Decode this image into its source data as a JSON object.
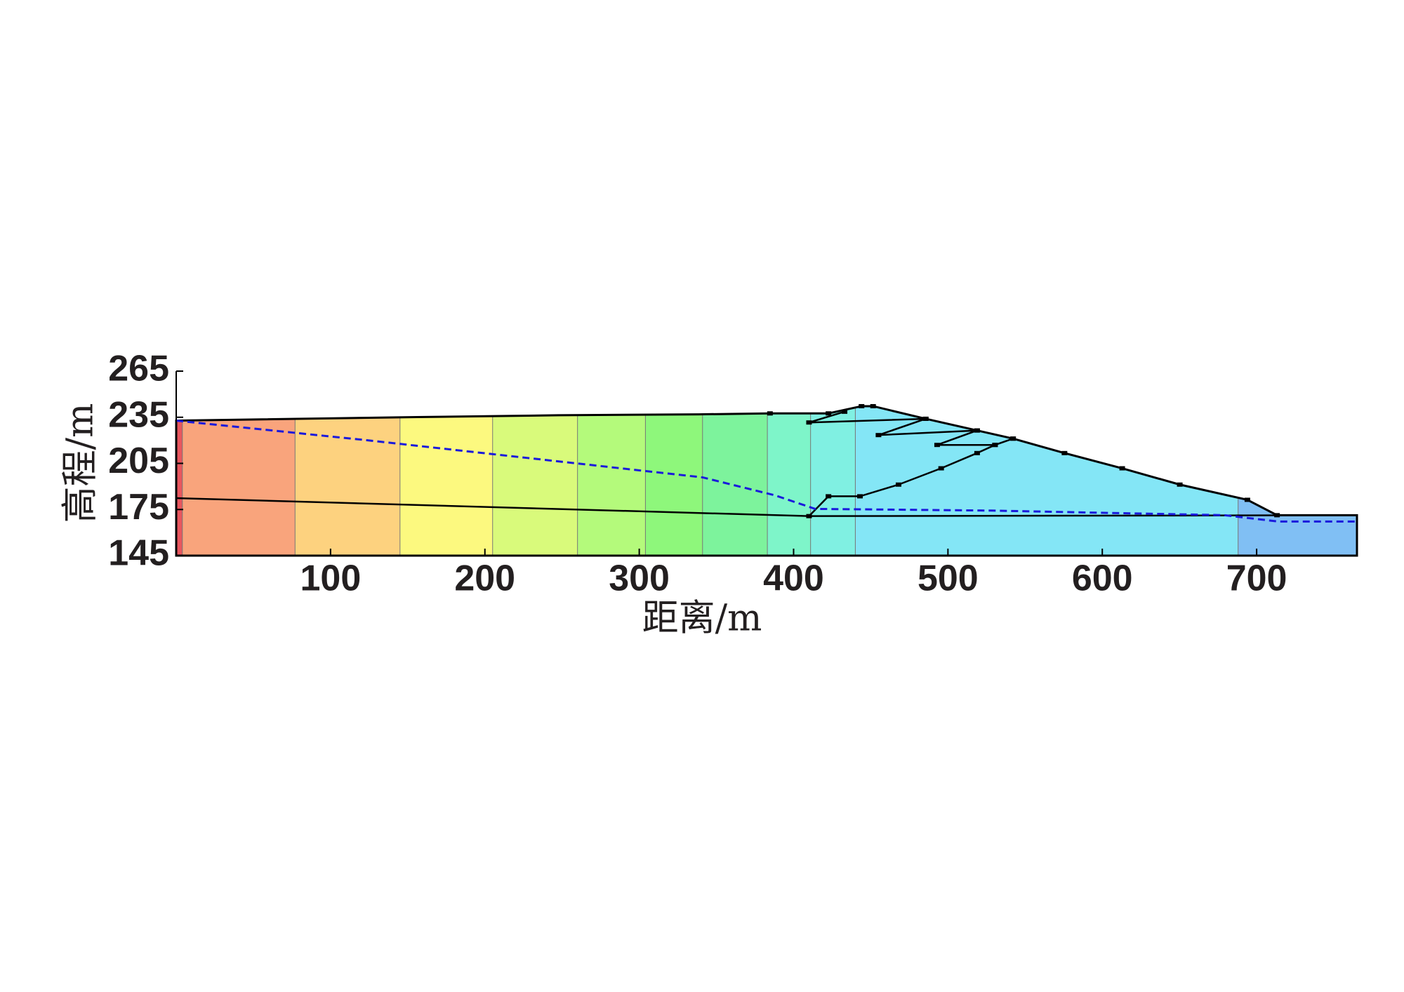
{
  "chart_data": {
    "type": "section",
    "xlabel": "距离/m",
    "ylabel": "高程/m",
    "xlim": [
      0,
      765
    ],
    "ylim": [
      145,
      265
    ],
    "xticks": [
      100,
      200,
      300,
      400,
      500,
      600,
      700
    ],
    "yticks": [
      145,
      175,
      205,
      235,
      265
    ],
    "domain": {
      "x": [
        0,
        156,
        247.6,
        338.6,
        384.7,
        422.6,
        444,
        451.5,
        485.6,
        518.9,
        542.2,
        575.5,
        612.9,
        650.2,
        694,
        713.2,
        765,
        765,
        0
      ],
      "y": [
        232.8,
        235.1,
        236.3,
        236.9,
        237.5,
        237.5,
        242.2,
        242.2,
        234,
        226.4,
        221.1,
        211.7,
        201.8,
        191.2,
        181.3,
        171.3,
        171.3,
        145,
        145
      ],
      "color": "#000000"
    },
    "contour_bounds": [
      0,
      4,
      77,
      145,
      205,
      260,
      304,
      341,
      383,
      411,
      440,
      688,
      765
    ],
    "contour_colors": [
      "#e8565e",
      "#f9a47c",
      "#fdd27f",
      "#fcf97f",
      "#d9fa7b",
      "#b4fa7b",
      "#8ef77b",
      "#7df39c",
      "#7ef5c9",
      "#80f0e2",
      "#84e6f6",
      "#80bff4"
    ],
    "series": [
      {
        "color": "#000000",
        "style": "solid",
        "markers": false,
        "x": [
          0,
          410,
          765
        ],
        "y": [
          182.4,
          170.7,
          171.3
        ]
      },
      {
        "color": "#000000",
        "style": "solid",
        "markers": true,
        "x": [
          410,
          422.6,
          443,
          468,
          495.6,
          518.9,
          530.5,
          542.2
        ],
        "y": [
          170.7,
          183.6,
          183.6,
          191.2,
          201.8,
          211.7,
          217,
          221.1
        ]
      },
      {
        "color": "#000000",
        "style": "solid",
        "markers": true,
        "x": [
          433,
          410,
          485.6,
          455,
          518.9,
          493,
          530.5
        ],
        "y": [
          238.6,
          231.6,
          234,
          223.4,
          226.4,
          217,
          217
        ]
      },
      {
        "color": "#1a1adc",
        "style": "dashed",
        "markers": false,
        "x": [
          0,
          119.4,
          236,
          341,
          388,
          414,
          528,
          679,
          714,
          765
        ],
        "y": [
          232.8,
          220.5,
          207.6,
          195.9,
          184.2,
          175.4,
          174.3,
          171.3,
          167.2,
          167.2
        ]
      }
    ]
  }
}
